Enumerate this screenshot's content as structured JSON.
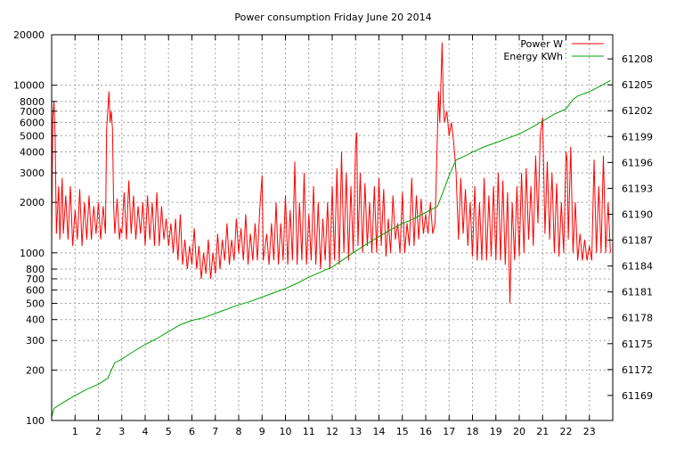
{
  "chart_data": {
    "type": "line",
    "title": "Power consumption Friday June 20 2014",
    "xlabel": "",
    "ylabel": "",
    "x_range": [
      0,
      24
    ],
    "x_ticks": [
      1,
      2,
      3,
      4,
      5,
      6,
      7,
      8,
      9,
      10,
      11,
      12,
      13,
      14,
      15,
      16,
      17,
      18,
      19,
      20,
      21,
      22,
      23
    ],
    "y_scale": "log",
    "ylim": [
      100,
      20000
    ],
    "y_ticks": [
      100,
      200,
      300,
      400,
      500,
      600,
      700,
      800,
      1000,
      2000,
      3000,
      4000,
      5000,
      6000,
      7000,
      8000,
      10000,
      20000
    ],
    "y2_range": [
      61166.1,
      61210.8
    ],
    "y2_ticks": [
      61169,
      61172,
      61175,
      61178,
      61181,
      61184,
      61187,
      61190,
      61193,
      61196,
      61199,
      61202,
      61205,
      61208
    ],
    "grid": true,
    "legend_position": "top-right",
    "series": [
      {
        "name": "Power W",
        "axis": "left",
        "color": "#ff0000",
        "points": [
          [
            0.0,
            1200
          ],
          [
            0.05,
            6500
          ],
          [
            0.1,
            8000
          ],
          [
            0.15,
            5000
          ],
          [
            0.2,
            1300
          ],
          [
            0.3,
            2500
          ],
          [
            0.35,
            1200
          ],
          [
            0.45,
            2800
          ],
          [
            0.5,
            1300
          ],
          [
            0.6,
            2200
          ],
          [
            0.7,
            1200
          ],
          [
            0.8,
            2500
          ],
          [
            0.9,
            1100
          ],
          [
            1.0,
            1800
          ],
          [
            1.1,
            1200
          ],
          [
            1.2,
            2400
          ],
          [
            1.3,
            1100
          ],
          [
            1.4,
            2000
          ],
          [
            1.5,
            1200
          ],
          [
            1.6,
            2200
          ],
          [
            1.7,
            1200
          ],
          [
            1.8,
            1900
          ],
          [
            1.9,
            1300
          ],
          [
            2.0,
            2000
          ],
          [
            2.1,
            1200
          ],
          [
            2.2,
            1900
          ],
          [
            2.3,
            1300
          ],
          [
            2.35,
            5500
          ],
          [
            2.4,
            7000
          ],
          [
            2.45,
            9200
          ],
          [
            2.5,
            6000
          ],
          [
            2.55,
            7000
          ],
          [
            2.6,
            5500
          ],
          [
            2.65,
            1900
          ],
          [
            2.7,
            1300
          ],
          [
            2.8,
            2100
          ],
          [
            2.9,
            1200
          ],
          [
            2.95,
            1400
          ],
          [
            3.0,
            1300
          ],
          [
            3.1,
            2300
          ],
          [
            3.2,
            1200
          ],
          [
            3.3,
            2700
          ],
          [
            3.4,
            1300
          ],
          [
            3.5,
            2200
          ],
          [
            3.6,
            1200
          ],
          [
            3.7,
            1900
          ],
          [
            3.8,
            1300
          ],
          [
            3.9,
            2000
          ],
          [
            4.0,
            1100
          ],
          [
            4.1,
            2200
          ],
          [
            4.2,
            1200
          ],
          [
            4.3,
            2000
          ],
          [
            4.4,
            1100
          ],
          [
            4.5,
            2300
          ],
          [
            4.6,
            1100
          ],
          [
            4.7,
            1900
          ],
          [
            4.8,
            1200
          ],
          [
            4.9,
            1600
          ],
          [
            5.0,
            1100
          ],
          [
            5.1,
            1500
          ],
          [
            5.2,
            1000
          ],
          [
            5.3,
            1600
          ],
          [
            5.4,
            900
          ],
          [
            5.5,
            1700
          ],
          [
            5.6,
            850
          ],
          [
            5.7,
            1200
          ],
          [
            5.8,
            800
          ],
          [
            5.9,
            1100
          ],
          [
            6.0,
            850
          ],
          [
            6.1,
            1400
          ],
          [
            6.2,
            800
          ],
          [
            6.3,
            1100
          ],
          [
            6.4,
            700
          ],
          [
            6.5,
            1000
          ],
          [
            6.6,
            750
          ],
          [
            6.7,
            1200
          ],
          [
            6.8,
            700
          ],
          [
            6.9,
            1000
          ],
          [
            7.0,
            750
          ],
          [
            7.1,
            1300
          ],
          [
            7.2,
            800
          ],
          [
            7.3,
            1200
          ],
          [
            7.4,
            900
          ],
          [
            7.5,
            1500
          ],
          [
            7.6,
            850
          ],
          [
            7.7,
            1200
          ],
          [
            7.8,
            900
          ],
          [
            7.9,
            1600
          ],
          [
            8.0,
            1000
          ],
          [
            8.1,
            1400
          ],
          [
            8.2,
            900
          ],
          [
            8.3,
            1700
          ],
          [
            8.4,
            850
          ],
          [
            8.5,
            1300
          ],
          [
            8.6,
            900
          ],
          [
            8.7,
            1500
          ],
          [
            8.8,
            900
          ],
          [
            8.9,
            1800
          ],
          [
            9.0,
            2900
          ],
          [
            9.05,
            900
          ],
          [
            9.2,
            1300
          ],
          [
            9.3,
            850
          ],
          [
            9.4,
            1500
          ],
          [
            9.5,
            900
          ],
          [
            9.6,
            2000
          ],
          [
            9.7,
            850
          ],
          [
            9.8,
            1500
          ],
          [
            9.9,
            900
          ],
          [
            10.0,
            2200
          ],
          [
            10.1,
            850
          ],
          [
            10.2,
            1800
          ],
          [
            10.3,
            900
          ],
          [
            10.4,
            3500
          ],
          [
            10.5,
            850
          ],
          [
            10.6,
            2000
          ],
          [
            10.7,
            900
          ],
          [
            10.8,
            3000
          ],
          [
            10.9,
            850
          ],
          [
            11.0,
            1700
          ],
          [
            11.1,
            900
          ],
          [
            11.2,
            2500
          ],
          [
            11.3,
            850
          ],
          [
            11.4,
            2000
          ],
          [
            11.5,
            800
          ],
          [
            11.6,
            1600
          ],
          [
            11.7,
            900
          ],
          [
            11.8,
            2000
          ],
          [
            11.9,
            800
          ],
          [
            12.0,
            2500
          ],
          [
            12.1,
            900
          ],
          [
            12.2,
            3200
          ],
          [
            12.3,
            850
          ],
          [
            12.4,
            4000
          ],
          [
            12.5,
            1000
          ],
          [
            12.6,
            3000
          ],
          [
            12.7,
            900
          ],
          [
            12.8,
            2500
          ],
          [
            12.9,
            1000
          ],
          [
            13.0,
            4500
          ],
          [
            13.05,
            5200
          ],
          [
            13.1,
            1100
          ],
          [
            13.2,
            3000
          ],
          [
            13.3,
            1000
          ],
          [
            13.4,
            2600
          ],
          [
            13.5,
            1100
          ],
          [
            13.6,
            2000
          ],
          [
            13.7,
            1000
          ],
          [
            13.8,
            2500
          ],
          [
            13.9,
            1000
          ],
          [
            14.0,
            2800
          ],
          [
            14.1,
            1100
          ],
          [
            14.2,
            2400
          ],
          [
            14.3,
            950
          ],
          [
            14.4,
            1600
          ],
          [
            14.5,
            1000
          ],
          [
            14.6,
            2200
          ],
          [
            14.7,
            1200
          ],
          [
            14.8,
            1500
          ],
          [
            14.9,
            1000
          ],
          [
            15.0,
            2300
          ],
          [
            15.1,
            1000
          ],
          [
            15.2,
            1500
          ],
          [
            15.3,
            1100
          ],
          [
            15.4,
            2800
          ],
          [
            15.5,
            1100
          ],
          [
            15.6,
            2200
          ],
          [
            15.7,
            1200
          ],
          [
            15.8,
            2100
          ],
          [
            15.9,
            1300
          ],
          [
            16.0,
            1700
          ],
          [
            16.1,
            1300
          ],
          [
            16.2,
            2000
          ],
          [
            16.3,
            1300
          ],
          [
            16.4,
            1500
          ],
          [
            16.5,
            5000
          ],
          [
            16.55,
            9200
          ],
          [
            16.6,
            6000
          ],
          [
            16.7,
            18000
          ],
          [
            16.75,
            8000
          ],
          [
            16.8,
            6000
          ],
          [
            16.9,
            7000
          ],
          [
            17.0,
            5000
          ],
          [
            17.1,
            6000
          ],
          [
            17.2,
            4500
          ],
          [
            17.3,
            3000
          ],
          [
            17.4,
            1200
          ],
          [
            17.5,
            2800
          ],
          [
            17.6,
            1300
          ],
          [
            17.7,
            2400
          ],
          [
            17.8,
            1100
          ],
          [
            17.9,
            2000
          ],
          [
            18.0,
            950
          ],
          [
            18.1,
            2500
          ],
          [
            18.2,
            900
          ],
          [
            18.3,
            2000
          ],
          [
            18.4,
            900
          ],
          [
            18.5,
            2800
          ],
          [
            18.6,
            900
          ],
          [
            18.7,
            2200
          ],
          [
            18.8,
            950
          ],
          [
            18.9,
            2500
          ],
          [
            19.0,
            900
          ],
          [
            19.1,
            3000
          ],
          [
            19.2,
            900
          ],
          [
            19.3,
            2700
          ],
          [
            19.4,
            850
          ],
          [
            19.5,
            2300
          ],
          [
            19.6,
            500
          ],
          [
            19.7,
            2000
          ],
          [
            19.8,
            900
          ],
          [
            19.9,
            2500
          ],
          [
            20.0,
            950
          ],
          [
            20.1,
            3000
          ],
          [
            20.2,
            1000
          ],
          [
            20.3,
            3200
          ],
          [
            20.4,
            1200
          ],
          [
            20.5,
            2500
          ],
          [
            20.6,
            1100
          ],
          [
            20.7,
            3800
          ],
          [
            20.8,
            1500
          ],
          [
            20.9,
            5000
          ],
          [
            21.0,
            6400
          ],
          [
            21.1,
            1300
          ],
          [
            21.2,
            3500
          ],
          [
            21.3,
            1200
          ],
          [
            21.4,
            3000
          ],
          [
            21.5,
            1000
          ],
          [
            21.6,
            2600
          ],
          [
            21.7,
            950
          ],
          [
            21.8,
            2000
          ],
          [
            21.9,
            1000
          ],
          [
            22.0,
            4000
          ],
          [
            22.05,
            3500
          ],
          [
            22.1,
            1200
          ],
          [
            22.2,
            4300
          ],
          [
            22.3,
            1000
          ],
          [
            22.4,
            2000
          ],
          [
            22.5,
            900
          ],
          [
            22.6,
            1300
          ],
          [
            22.7,
            900
          ],
          [
            22.8,
            1200
          ],
          [
            22.9,
            900
          ],
          [
            23.0,
            1100
          ],
          [
            23.1,
            900
          ],
          [
            23.2,
            3600
          ],
          [
            23.3,
            1000
          ],
          [
            23.4,
            2500
          ],
          [
            23.5,
            1000
          ],
          [
            23.6,
            3800
          ],
          [
            23.7,
            1000
          ],
          [
            23.8,
            2000
          ],
          [
            23.9,
            1000
          ]
        ]
      },
      {
        "name": "Energy KWh",
        "axis": "right",
        "color": "#00a000",
        "points": [
          [
            0.0,
            61166.5
          ],
          [
            0.1,
            61167.5
          ],
          [
            0.5,
            61168.2
          ],
          [
            1.0,
            61169.0
          ],
          [
            1.5,
            61169.7
          ],
          [
            2.0,
            61170.3
          ],
          [
            2.4,
            61171.0
          ],
          [
            2.7,
            61172.8
          ],
          [
            3.0,
            61173.2
          ],
          [
            3.5,
            61174.1
          ],
          [
            4.0,
            61174.9
          ],
          [
            4.5,
            61175.6
          ],
          [
            5.0,
            61176.4
          ],
          [
            5.5,
            61177.2
          ],
          [
            6.0,
            61177.7
          ],
          [
            6.5,
            61178.0
          ],
          [
            7.0,
            61178.5
          ],
          [
            7.5,
            61179.0
          ],
          [
            8.0,
            61179.5
          ],
          [
            8.5,
            61179.9
          ],
          [
            9.0,
            61180.4
          ],
          [
            9.5,
            61180.9
          ],
          [
            10.0,
            61181.4
          ],
          [
            10.5,
            61182.0
          ],
          [
            11.0,
            61182.7
          ],
          [
            11.5,
            61183.3
          ],
          [
            12.0,
            61183.9
          ],
          [
            12.5,
            61184.8
          ],
          [
            13.0,
            61185.7
          ],
          [
            13.5,
            61186.6
          ],
          [
            14.0,
            61187.4
          ],
          [
            14.5,
            61188.2
          ],
          [
            15.0,
            61188.9
          ],
          [
            15.5,
            61189.5
          ],
          [
            16.0,
            61190.2
          ],
          [
            16.5,
            61190.9
          ],
          [
            16.8,
            61193.0
          ],
          [
            17.0,
            61194.5
          ],
          [
            17.3,
            61196.3
          ],
          [
            17.8,
            61196.9
          ],
          [
            18.0,
            61197.2
          ],
          [
            18.5,
            61197.8
          ],
          [
            19.0,
            61198.3
          ],
          [
            19.5,
            61198.8
          ],
          [
            20.0,
            61199.3
          ],
          [
            20.5,
            61200.0
          ],
          [
            21.0,
            61200.8
          ],
          [
            21.5,
            61201.6
          ],
          [
            22.0,
            61202.2
          ],
          [
            22.3,
            61203.3
          ],
          [
            22.5,
            61203.7
          ],
          [
            23.0,
            61204.2
          ],
          [
            23.5,
            61204.9
          ],
          [
            23.9,
            61205.5
          ]
        ]
      }
    ]
  }
}
